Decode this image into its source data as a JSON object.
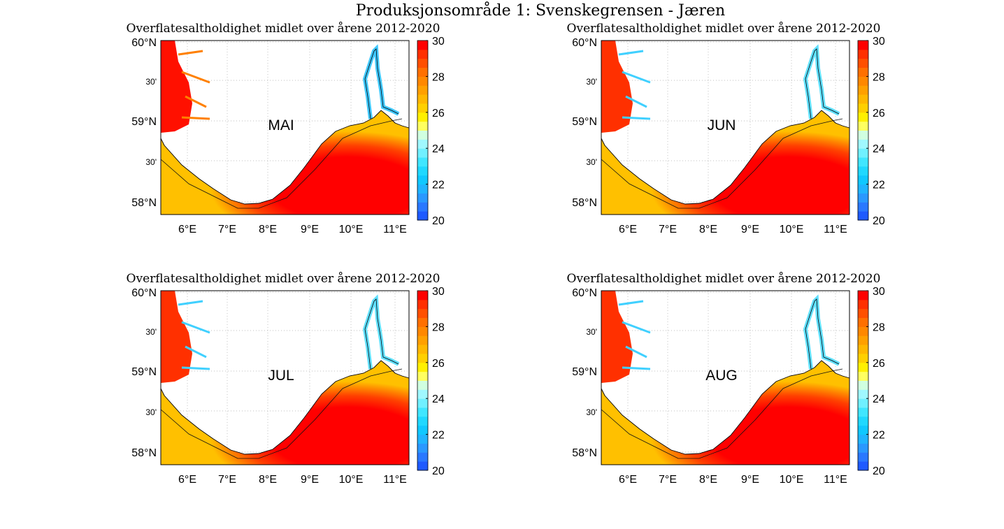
{
  "title": "Produksjonsområde 1: Svenskegrensen - Jæren",
  "panels": [
    {
      "subtitle": "Overflatesaltholdighet midlet over årene 2012-2020",
      "month": "MAI"
    },
    {
      "subtitle": "Overflatesaltholdighet midlet over årene 2012-2020",
      "month": "JUN"
    },
    {
      "subtitle": "Overflatesaltholdighet midlet over årene 2012-2020",
      "month": "JUL"
    },
    {
      "subtitle": "Overflatesaltholdighet midlet over årene 2012-2020",
      "month": "AUG"
    }
  ],
  "lat_labels": [
    "60°N",
    "30'",
    "59°N",
    "30'",
    "58°N"
  ],
  "lon_labels": [
    "6°E",
    "7°E",
    "8°E",
    "9°E",
    "10°E",
    "11°E"
  ],
  "colorbar": {
    "lim": [
      20,
      30
    ],
    "ticks": [
      20,
      22,
      24,
      26,
      28,
      30
    ],
    "colors": [
      "#1e5aff",
      "#2a78ff",
      "#2a98ff",
      "#20b4ff",
      "#10c8ff",
      "#20d8ff",
      "#40e6ff",
      "#70f0ff",
      "#a0f8ff",
      "#d0ffe0",
      "#ffff60",
      "#fff000",
      "#ffd000",
      "#ffb800",
      "#ffa000",
      "#ff8800",
      "#ff7000",
      "#ff5000",
      "#ff3000",
      "#ff0000"
    ]
  }
}
